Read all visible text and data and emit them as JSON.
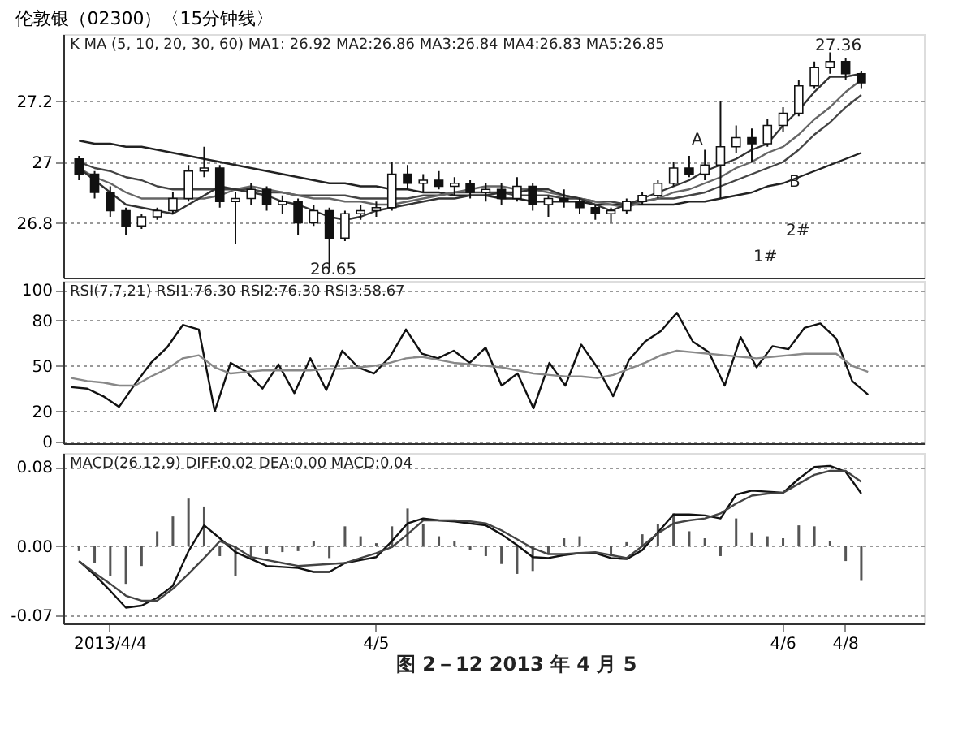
{
  "chart_data": [
    {
      "type": "candlestick",
      "title": "伦敦银（02300）〈15分钟线〉",
      "ylim": [
        26.62,
        27.42
      ],
      "yticks": [
        26.8,
        27,
        27.2
      ],
      "grid": "y",
      "tick_labels": "y",
      "categories": [
        null,
        null,
        null,
        null,
        null,
        null,
        null,
        null,
        null,
        null,
        null,
        null,
        null,
        null,
        null,
        null,
        null,
        null,
        null,
        null,
        null,
        null,
        null,
        null,
        null,
        null,
        null,
        null,
        null,
        null,
        null,
        null,
        null,
        null,
        null,
        null,
        null,
        null,
        null,
        null,
        null,
        null,
        null,
        null,
        null,
        null,
        null,
        null,
        null,
        null,
        null,
        null,
        null,
        null
      ],
      "ohlc": [
        [
          27.01,
          27.02,
          26.94,
          26.96
        ],
        [
          26.96,
          26.97,
          26.88,
          26.9
        ],
        [
          26.9,
          26.92,
          26.82,
          26.84
        ],
        [
          26.84,
          26.85,
          26.76,
          26.79
        ],
        [
          26.79,
          26.83,
          26.78,
          26.82
        ],
        [
          26.82,
          26.85,
          26.81,
          26.84
        ],
        [
          26.84,
          26.9,
          26.83,
          26.88
        ],
        [
          26.88,
          26.99,
          26.87,
          26.97
        ],
        [
          26.97,
          27.05,
          26.95,
          26.98
        ],
        [
          26.98,
          26.99,
          26.85,
          26.87
        ],
        [
          26.87,
          26.9,
          26.73,
          26.88
        ],
        [
          26.88,
          26.93,
          26.86,
          26.91
        ],
        [
          26.91,
          26.92,
          26.84,
          26.86
        ],
        [
          26.86,
          26.89,
          26.83,
          26.87
        ],
        [
          26.87,
          26.88,
          26.76,
          26.8
        ],
        [
          26.8,
          26.86,
          26.79,
          26.84
        ],
        [
          26.84,
          26.85,
          26.65,
          26.75
        ],
        [
          26.75,
          26.84,
          26.74,
          26.83
        ],
        [
          26.83,
          26.86,
          26.81,
          26.84
        ],
        [
          26.84,
          26.87,
          26.82,
          26.85
        ],
        [
          26.85,
          27.0,
          26.84,
          26.96
        ],
        [
          26.96,
          26.99,
          26.91,
          26.93
        ],
        [
          26.93,
          26.96,
          26.9,
          26.94
        ],
        [
          26.94,
          26.97,
          26.91,
          26.92
        ],
        [
          26.92,
          26.95,
          26.89,
          26.93
        ],
        [
          26.93,
          26.94,
          26.88,
          26.9
        ],
        [
          26.9,
          26.93,
          26.87,
          26.91
        ],
        [
          26.91,
          26.93,
          26.86,
          26.88
        ],
        [
          26.88,
          26.95,
          26.87,
          26.92
        ],
        [
          26.92,
          26.93,
          26.84,
          26.86
        ],
        [
          26.86,
          26.89,
          26.82,
          26.88
        ],
        [
          26.88,
          26.91,
          26.85,
          26.87
        ],
        [
          26.87,
          26.88,
          26.83,
          26.85
        ],
        [
          26.85,
          26.86,
          26.81,
          26.83
        ],
        [
          26.83,
          26.85,
          26.8,
          26.84
        ],
        [
          26.84,
          26.88,
          26.83,
          26.87
        ],
        [
          26.87,
          26.9,
          26.86,
          26.89
        ],
        [
          26.89,
          26.94,
          26.88,
          26.93
        ],
        [
          26.93,
          27.0,
          26.92,
          26.98
        ],
        [
          26.98,
          27.02,
          26.95,
          26.96
        ],
        [
          26.96,
          27.04,
          26.94,
          26.99
        ],
        [
          26.99,
          27.2,
          26.88,
          27.05
        ],
        [
          27.05,
          27.12,
          27.03,
          27.08
        ],
        [
          27.08,
          27.11,
          27.0,
          27.06
        ],
        [
          27.06,
          27.14,
          27.05,
          27.12
        ],
        [
          27.12,
          27.18,
          27.1,
          27.16
        ],
        [
          27.16,
          27.27,
          27.15,
          27.25
        ],
        [
          27.25,
          27.33,
          27.24,
          27.31
        ],
        [
          27.31,
          27.36,
          27.29,
          27.33
        ],
        [
          27.33,
          27.34,
          27.27,
          27.29
        ],
        [
          27.29,
          27.3,
          27.24,
          27.26
        ],
        null,
        null,
        null
      ],
      "series": [
        {
          "type": "line",
          "color": "#222222",
          "values": [
            27.07,
            27.06,
            27.06,
            27.05,
            27.05,
            27.04,
            27.03,
            27.02,
            27.01,
            27.0,
            26.99,
            26.98,
            26.97,
            26.96,
            26.95,
            26.94,
            26.93,
            26.93,
            26.92,
            26.92,
            26.91,
            26.91,
            26.9,
            26.9,
            26.89,
            26.89,
            26.89,
            26.88,
            26.88,
            26.87,
            26.87,
            26.87,
            26.87,
            26.86,
            26.86,
            26.86,
            26.86,
            26.86,
            26.86,
            26.87,
            26.87,
            26.88,
            26.89,
            26.9,
            26.92,
            26.93,
            26.95,
            26.97,
            26.99,
            27.01,
            27.03,
            null,
            null,
            null
          ]
        },
        {
          "type": "line",
          "color": "#444444",
          "values": [
            27.0,
            26.98,
            26.97,
            26.95,
            26.94,
            26.92,
            26.91,
            26.91,
            26.91,
            26.91,
            26.91,
            26.91,
            26.9,
            26.9,
            26.89,
            26.89,
            26.89,
            26.89,
            26.88,
            26.88,
            26.88,
            26.88,
            26.89,
            26.89,
            26.9,
            26.9,
            26.9,
            26.9,
            26.89,
            26.89,
            26.89,
            26.88,
            26.88,
            26.87,
            26.87,
            26.86,
            26.87,
            26.88,
            26.88,
            26.89,
            26.9,
            26.92,
            26.94,
            26.96,
            26.98,
            27.0,
            27.04,
            27.09,
            27.13,
            27.18,
            27.22,
            null,
            null,
            null
          ]
        },
        {
          "type": "line",
          "color": "#666666",
          "values": [
            26.98,
            26.95,
            26.93,
            26.9,
            26.88,
            26.88,
            26.88,
            26.88,
            26.88,
            26.89,
            26.91,
            26.92,
            26.91,
            26.9,
            26.89,
            26.88,
            26.88,
            26.87,
            26.87,
            26.86,
            26.86,
            26.87,
            26.88,
            26.89,
            26.9,
            26.91,
            26.92,
            26.92,
            26.91,
            26.91,
            26.9,
            26.89,
            26.88,
            26.87,
            26.86,
            26.85,
            26.87,
            26.88,
            26.9,
            26.91,
            26.93,
            26.95,
            26.98,
            27.0,
            27.03,
            27.05,
            27.09,
            27.14,
            27.18,
            27.23,
            27.27,
            null,
            null,
            null
          ]
        },
        {
          "type": "line",
          "color": "#333333",
          "values": [
            26.98,
            26.94,
            26.9,
            26.86,
            26.85,
            26.84,
            26.83,
            26.86,
            26.89,
            26.92,
            26.91,
            26.9,
            26.89,
            26.87,
            26.86,
            26.84,
            26.82,
            26.81,
            26.82,
            26.84,
            26.85,
            26.86,
            26.87,
            26.88,
            26.88,
            26.89,
            26.89,
            26.9,
            26.9,
            26.91,
            26.91,
            26.89,
            26.88,
            26.86,
            26.84,
            26.86,
            26.88,
            26.9,
            26.92,
            26.94,
            26.97,
            26.99,
            27.01,
            27.04,
            27.06,
            27.12,
            27.17,
            27.23,
            27.28,
            27.28,
            27.29,
            null,
            null,
            null
          ]
        }
      ],
      "annotations": [
        "K MA (5, 10, 20, 30, 60)  MA1: 26.92  MA2:26.86  MA3:26.84  MA4:26.83  MA5:26.85",
        "27.36",
        "26.65",
        "A",
        "B",
        "1#",
        "2#"
      ]
    },
    {
      "type": "line",
      "ylim": [
        -1,
        106
      ],
      "yticks": [
        0,
        20,
        50,
        80,
        100
      ],
      "grid": "y",
      "tick_labels": "y",
      "categories": [
        null,
        null,
        null,
        null,
        null,
        null,
        null,
        null,
        null,
        null,
        null,
        null,
        null,
        null,
        null,
        null,
        null,
        null,
        null,
        null,
        null,
        null,
        null,
        null,
        null,
        null,
        null,
        null,
        null,
        null,
        null,
        null,
        null,
        null,
        null,
        null,
        null,
        null,
        null,
        null,
        null,
        null,
        null,
        null,
        null,
        null,
        null,
        null,
        null,
        null,
        null,
        null,
        null,
        null
      ],
      "series": [
        {
          "color": "#111111",
          "values": [
            36,
            35,
            30,
            23,
            38,
            52,
            62,
            77,
            74,
            20,
            52,
            46,
            35,
            51,
            32,
            55,
            34,
            60,
            49,
            45,
            56,
            74,
            58,
            55,
            60,
            52,
            62,
            37,
            45,
            22,
            52,
            37,
            64,
            49,
            30,
            54,
            66,
            73,
            85,
            66,
            59,
            37,
            69,
            49,
            63,
            61,
            75,
            78,
            68,
            40,
            31,
            null,
            null,
            null
          ]
        },
        {
          "color": "#888888",
          "values": [
            42,
            40,
            39,
            37,
            37,
            43,
            48,
            55,
            57,
            49,
            45,
            46,
            47,
            47,
            47,
            47,
            48,
            48,
            49,
            50,
            52,
            55,
            56,
            54,
            52,
            51,
            50,
            49,
            47,
            45,
            44,
            43,
            43,
            42,
            44,
            48,
            52,
            57,
            60,
            59,
            58,
            57,
            56,
            55,
            56,
            57,
            58,
            58,
            58,
            50,
            46,
            null,
            null,
            null
          ]
        }
      ],
      "annotations": [
        "RSI(7,7,21)  RSI1:76.30  RSI2:76.30  RSI3:58.67"
      ]
    },
    {
      "type": "line",
      "ylim": [
        -0.078,
        0.094
      ],
      "yticks": [
        {
          "value": 0.08,
          "label": "0.08"
        },
        {
          "value": 0,
          "label": "0.00"
        },
        {
          "value": -0.07,
          "label": "-0.07"
        }
      ],
      "grid": "y",
      "categories": [
        null,
        null,
        "2013/4/4",
        null,
        null,
        null,
        null,
        null,
        null,
        null,
        null,
        null,
        null,
        null,
        null,
        null,
        null,
        null,
        null,
        "4/5",
        null,
        null,
        null,
        null,
        null,
        null,
        null,
        null,
        null,
        null,
        null,
        null,
        null,
        null,
        null,
        null,
        null,
        null,
        null,
        null,
        null,
        null,
        null,
        null,
        null,
        "4/6",
        null,
        null,
        null,
        "4/8",
        null,
        null,
        null,
        null
      ],
      "series": [
        {
          "type": "bar",
          "color": "#555555",
          "values": [
            -0.005,
            -0.017,
            -0.03,
            -0.038,
            -0.02,
            0.015,
            0.03,
            0.048,
            0.04,
            -0.01,
            -0.03,
            -0.012,
            -0.008,
            -0.006,
            -0.005,
            0.005,
            -0.012,
            0.02,
            0.01,
            0.003,
            0.02,
            0.038,
            0.022,
            0.01,
            0.005,
            -0.004,
            -0.01,
            -0.018,
            -0.028,
            -0.025,
            -0.008,
            0.008,
            0.01,
            0.0,
            -0.01,
            0.004,
            0.012,
            0.022,
            0.033,
            0.015,
            0.008,
            -0.01,
            0.028,
            0.014,
            0.01,
            0.008,
            0.021,
            0.02,
            0.005,
            -0.015,
            -0.035,
            null,
            null,
            null
          ]
        },
        {
          "type": "line",
          "color": "#111111",
          "values": [
            -0.015,
            -0.029,
            -0.045,
            -0.062,
            -0.06,
            -0.052,
            -0.04,
            -0.005,
            0.021,
            0.008,
            -0.006,
            -0.013,
            -0.02,
            -0.021,
            -0.022,
            -0.026,
            -0.026,
            -0.017,
            -0.014,
            -0.011,
            0.005,
            0.023,
            0.028,
            0.026,
            0.025,
            0.023,
            0.021,
            0.012,
            0.001,
            -0.011,
            -0.012,
            -0.009,
            -0.007,
            -0.007,
            -0.012,
            -0.013,
            -0.004,
            0.014,
            0.032,
            0.032,
            0.031,
            0.028,
            0.052,
            0.056,
            0.055,
            0.054,
            0.068,
            0.08,
            0.081,
            0.075,
            0.053,
            null,
            null,
            null
          ]
        },
        {
          "type": "line",
          "color": "#444444",
          "values": [
            -0.015,
            -0.027,
            -0.038,
            -0.05,
            -0.055,
            -0.055,
            -0.043,
            -0.028,
            -0.012,
            0.005,
            -0.001,
            -0.011,
            -0.014,
            -0.017,
            -0.02,
            -0.019,
            -0.018,
            -0.017,
            -0.012,
            -0.007,
            -0.001,
            0.012,
            0.026,
            0.026,
            0.026,
            0.025,
            0.023,
            0.016,
            0.007,
            -0.002,
            -0.008,
            -0.008,
            -0.007,
            -0.006,
            -0.009,
            -0.012,
            0.0,
            0.013,
            0.023,
            0.026,
            0.028,
            0.033,
            0.043,
            0.051,
            0.053,
            0.054,
            0.063,
            0.072,
            0.076,
            0.076,
            0.065,
            null,
            null,
            null
          ]
        }
      ],
      "annotations": [
        "MACD(26,12,9)  DIFF:0.02  DEA:0.00  MACD:0.04",
        "图 2－12  2013 年 4 月 5"
      ]
    }
  ]
}
